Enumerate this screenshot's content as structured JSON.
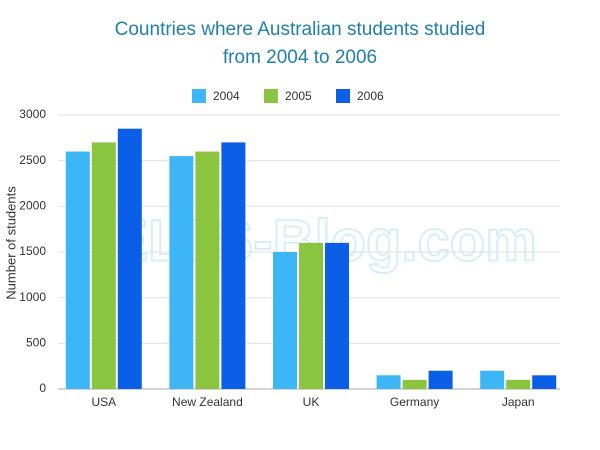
{
  "chart_data": {
    "type": "bar",
    "title": "Countries where Australian students studied from 2004 to 2006",
    "y_label": "Number of students",
    "watermark": "IELTS-Blog.com",
    "categories": [
      "USA",
      "New Zealand",
      "UK",
      "Germany",
      "Japan"
    ],
    "series": [
      {
        "name": "2004",
        "color": "#3cb6f4",
        "values": [
          2600,
          2550,
          1500,
          150,
          200
        ]
      },
      {
        "name": "2005",
        "color": "#8bc53f",
        "values": [
          2700,
          2600,
          1600,
          100,
          100
        ]
      },
      {
        "name": "2006",
        "color": "#0b5fe6",
        "values": [
          2850,
          2700,
          1600,
          200,
          150
        ]
      }
    ],
    "ylim": [
      0,
      3000
    ],
    "yticks": [
      0,
      500,
      1000,
      1500,
      2000,
      2500,
      3000
    ],
    "grid": true,
    "legend": "top"
  }
}
